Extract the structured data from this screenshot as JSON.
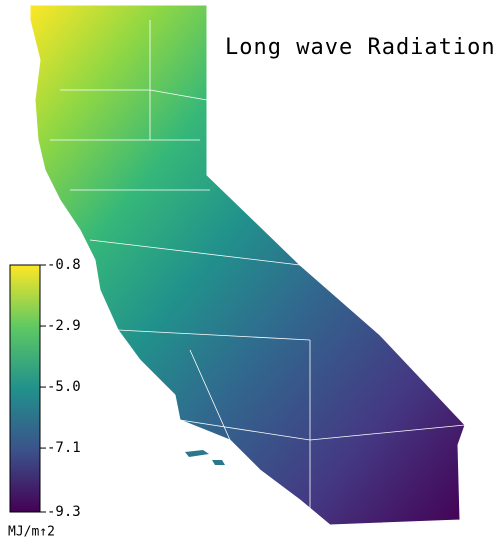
{
  "chart_data": {
    "type": "map",
    "title": "Long wave Radiation",
    "colorbar": {
      "label": "MJ/m↑2",
      "clim": [
        -9.3,
        -0.8
      ],
      "ticks": [
        -0.8,
        -2.9,
        {
          "value": -5,
          "label": "-5.0"
        },
        -7.1,
        -9.3
      ]
    }
  }
}
